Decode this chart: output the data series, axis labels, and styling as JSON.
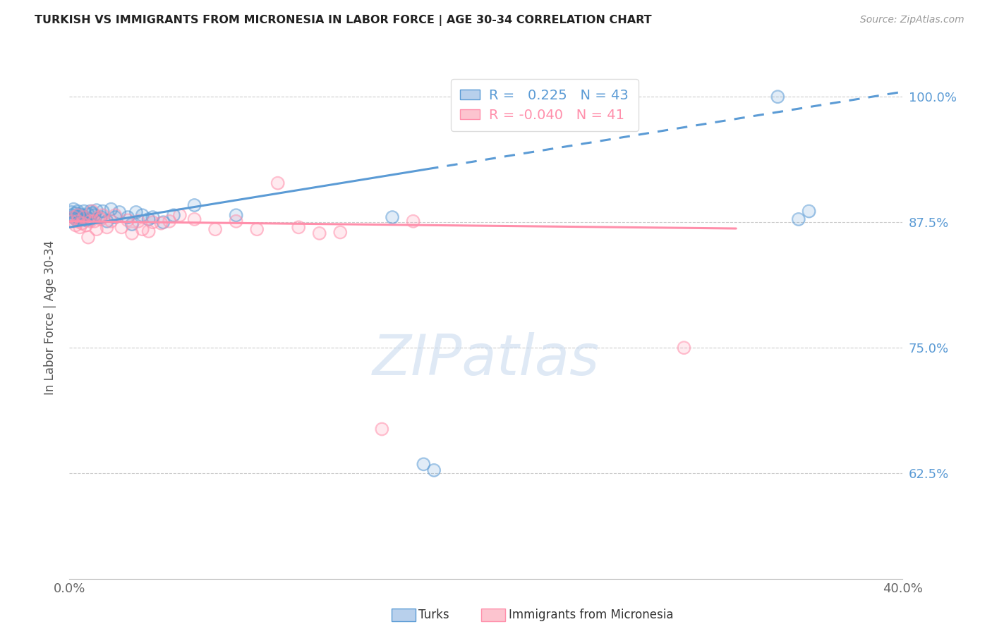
{
  "title": "TURKISH VS IMMIGRANTS FROM MICRONESIA IN LABOR FORCE | AGE 30-34 CORRELATION CHART",
  "source": "Source: ZipAtlas.com",
  "ylabel": "In Labor Force | Age 30-34",
  "xlim": [
    0.0,
    0.4
  ],
  "ylim": [
    0.52,
    1.04
  ],
  "ytick_positions": [
    0.625,
    0.75,
    0.875,
    1.0
  ],
  "ytick_labels": [
    "62.5%",
    "75.0%",
    "87.5%",
    "100.0%"
  ],
  "xtick_positions": [
    0.0,
    0.05,
    0.1,
    0.15,
    0.2,
    0.25,
    0.3,
    0.35,
    0.4
  ],
  "xtick_labels": [
    "0.0%",
    "",
    "",
    "",
    "",
    "",
    "",
    "",
    "40.0%"
  ],
  "legend_blue_r": "0.225",
  "legend_blue_n": "43",
  "legend_pink_r": "-0.040",
  "legend_pink_n": "41",
  "blue_color": "#5B9BD5",
  "pink_color": "#FF8FAB",
  "trend_blue_y0": 0.87,
  "trend_blue_y1": 1.005,
  "trend_blue_solid_end": 0.172,
  "trend_pink_y0": 0.876,
  "trend_pink_y1": 0.867,
  "trend_pink_end": 0.32,
  "watermark_text": "ZIPatlas",
  "legend_label_blue": "Turks",
  "legend_label_pink": "Immigrants from Micronesia",
  "turks_x": [
    0.001,
    0.001,
    0.002,
    0.002,
    0.003,
    0.003,
    0.004,
    0.004,
    0.005,
    0.005,
    0.006,
    0.006,
    0.007,
    0.007,
    0.008,
    0.009,
    0.01,
    0.01,
    0.011,
    0.012,
    0.013,
    0.015,
    0.016,
    0.018,
    0.02,
    0.022,
    0.024,
    0.028,
    0.03,
    0.032,
    0.035,
    0.038,
    0.04,
    0.045,
    0.05,
    0.06,
    0.08,
    0.155,
    0.17,
    0.175,
    0.34,
    0.35,
    0.355
  ],
  "turks_y": [
    0.885,
    0.882,
    0.888,
    0.88,
    0.884,
    0.878,
    0.886,
    0.88,
    0.883,
    0.878,
    0.882,
    0.879,
    0.886,
    0.88,
    0.877,
    0.883,
    0.886,
    0.878,
    0.884,
    0.882,
    0.887,
    0.88,
    0.886,
    0.876,
    0.888,
    0.88,
    0.885,
    0.88,
    0.873,
    0.885,
    0.882,
    0.878,
    0.88,
    0.875,
    0.882,
    0.892,
    0.882,
    0.88,
    0.634,
    0.628,
    1.0,
    0.878,
    0.886
  ],
  "micronesia_x": [
    0.001,
    0.002,
    0.003,
    0.004,
    0.004,
    0.005,
    0.006,
    0.007,
    0.008,
    0.009,
    0.01,
    0.011,
    0.012,
    0.013,
    0.014,
    0.015,
    0.016,
    0.018,
    0.02,
    0.022,
    0.025,
    0.028,
    0.03,
    0.033,
    0.035,
    0.038,
    0.04,
    0.044,
    0.048,
    0.053,
    0.06,
    0.07,
    0.08,
    0.09,
    0.1,
    0.11,
    0.12,
    0.13,
    0.15,
    0.165,
    0.295
  ],
  "micronesia_y": [
    0.876,
    0.88,
    0.872,
    0.876,
    0.882,
    0.87,
    0.874,
    0.88,
    0.872,
    0.86,
    0.876,
    0.886,
    0.876,
    0.868,
    0.88,
    0.878,
    0.882,
    0.87,
    0.876,
    0.882,
    0.87,
    0.877,
    0.864,
    0.876,
    0.868,
    0.866,
    0.875,
    0.874,
    0.876,
    0.882,
    0.878,
    0.868,
    0.876,
    0.868,
    0.914,
    0.87,
    0.864,
    0.865,
    0.669,
    0.876,
    0.75
  ]
}
